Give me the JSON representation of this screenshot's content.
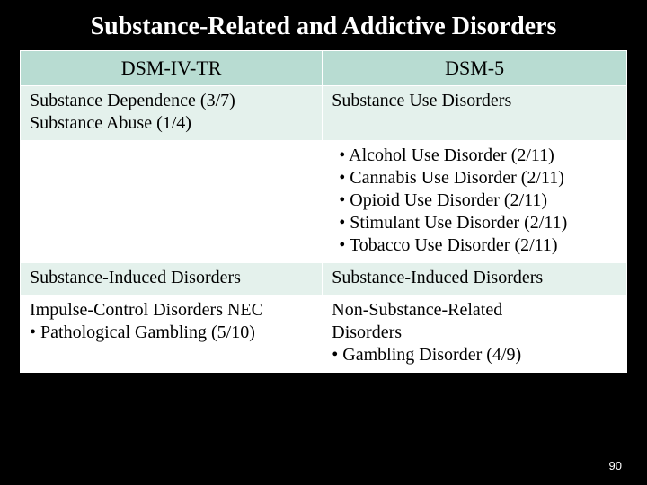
{
  "slide": {
    "title": "Substance-Related and Addictive Disorders",
    "page_number": "90",
    "title_color": "#ffffff",
    "background_color": "#000000",
    "title_fontsize": 28
  },
  "table": {
    "type": "table",
    "header_bg": "#b8dcd2",
    "alt_row_bg": "#e4f1ec",
    "plain_row_bg": "#ffffff",
    "border_color": "#ffffff",
    "font_family": "Times New Roman",
    "cell_fontsize": 20,
    "header_fontsize": 22,
    "columns": [
      "DSM-IV-TR",
      "DSM-5"
    ],
    "rows": [
      {
        "style": "alt",
        "left_lines": [
          "Substance Dependence (3/7)",
          "Substance Abuse (1/4)"
        ],
        "right_lines": [
          "Substance Use Disorders"
        ],
        "right_bullets": []
      },
      {
        "style": "plain",
        "left_lines": [],
        "right_lines": [],
        "right_bullets": [
          "Alcohol Use Disorder (2/11)",
          "Cannabis Use Disorder (2/11)",
          "Opioid Use Disorder (2/11)",
          "Stimulant Use Disorder (2/11)",
          "Tobacco Use Disorder (2/11)"
        ]
      },
      {
        "style": "alt",
        "left_lines": [
          "Substance-Induced Disorders"
        ],
        "right_lines": [
          "Substance-Induced Disorders"
        ],
        "right_bullets": []
      },
      {
        "style": "plain",
        "left_lines": [
          "Impulse-Control Disorders NEC"
        ],
        "left_sub_bullet": "Pathological Gambling (5/10)",
        "right_lines": [
          "Non-Substance-Related",
          "Disorders"
        ],
        "right_sub_bullet": "Gambling Disorder (4/9)"
      }
    ]
  }
}
